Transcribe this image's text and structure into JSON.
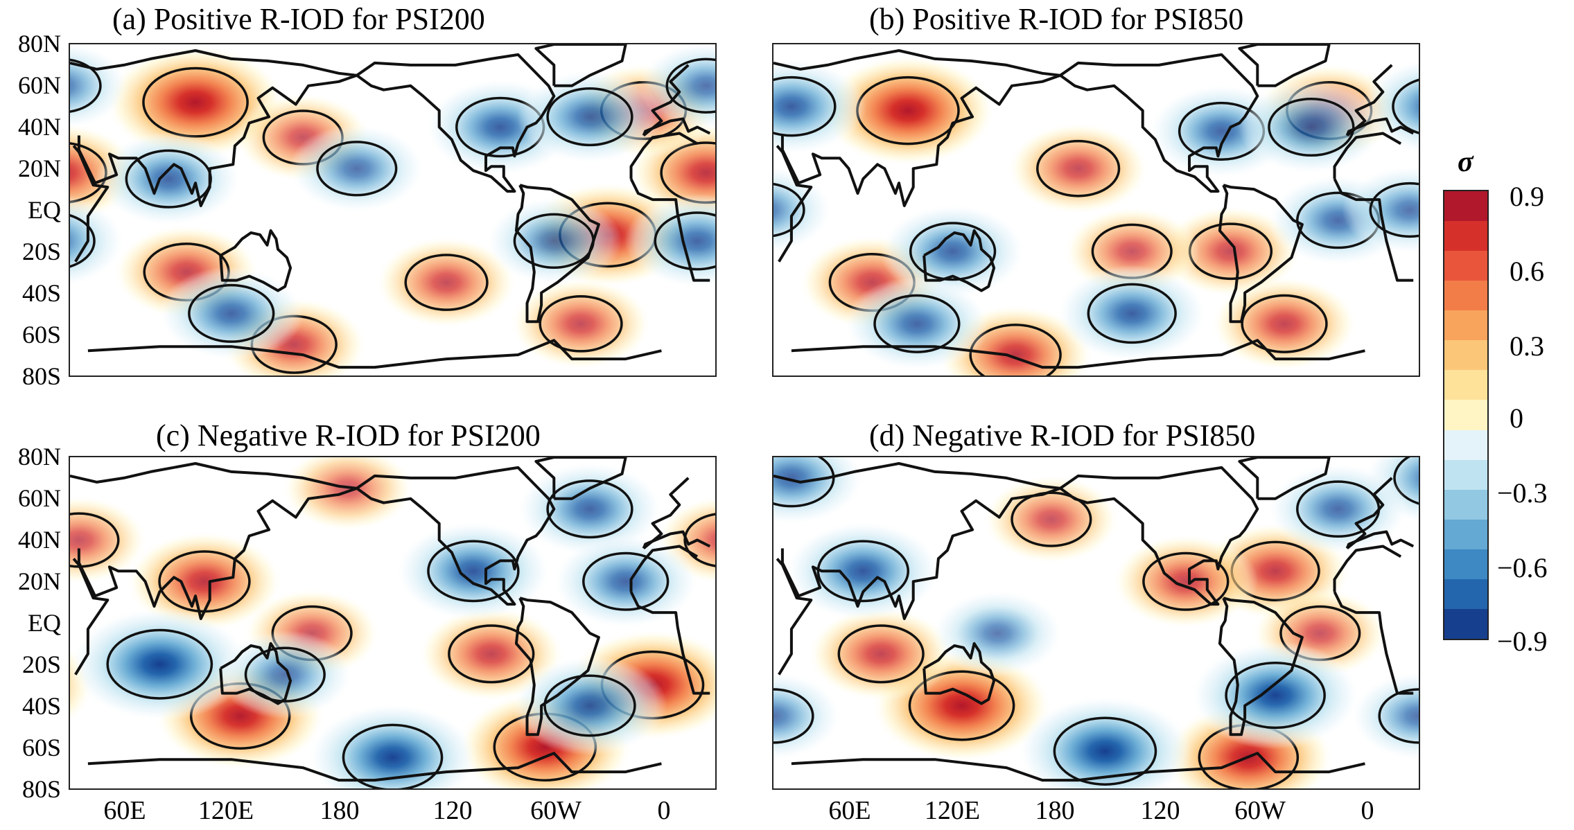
{
  "panels": [
    {
      "id": "a",
      "title": "(a) Positive R-IOD for PSI200"
    },
    {
      "id": "b",
      "title": "(b) Positive R-IOD for PSI850"
    },
    {
      "id": "c",
      "title": "(c) Negative R-IOD for PSI200"
    },
    {
      "id": "d",
      "title": "(d) Negative R-IOD for PSI850"
    }
  ],
  "lat_labels": [
    "80N",
    "60N",
    "40N",
    "20N",
    "EQ",
    "20S",
    "40S",
    "60S",
    "80S"
  ],
  "lon_labels": [
    "60E",
    "120E",
    "180",
    "120",
    "60W",
    "0"
  ],
  "colorbar": {
    "title": "σ",
    "tick_labels": [
      "0.9",
      "0.6",
      "0.3",
      "0",
      "−0.3",
      "−0.6",
      "−0.9"
    ],
    "colors": [
      "#b2182b",
      "#d6302a",
      "#e8553a",
      "#f27d48",
      "#f9a45d",
      "#fcc679",
      "#fee29a",
      "#fff4c4",
      "#e4f3fa",
      "#bfe3f0",
      "#92c8e2",
      "#64a9d3",
      "#3e88c3",
      "#2466ad",
      "#163f8e"
    ]
  },
  "map_data": {
    "a": {
      "anomalies": [
        {
          "lon": 100,
          "lat": 52,
          "v": 0.85
        },
        {
          "lon": 25,
          "lat": 18,
          "v": 0.6
        },
        {
          "lon": 330,
          "lat": -12,
          "v": 0.7
        },
        {
          "lon": 95,
          "lat": -30,
          "v": 0.5
        },
        {
          "lon": 160,
          "lat": 35,
          "v": 0.4
        },
        {
          "lon": 240,
          "lat": -35,
          "v": 0.45
        },
        {
          "lon": 155,
          "lat": -65,
          "v": 0.5
        },
        {
          "lon": 315,
          "lat": -55,
          "v": 0.45
        },
        {
          "lon": 350,
          "lat": 48,
          "v": 0.5
        },
        {
          "lon": 85,
          "lat": 15,
          "v": -0.5
        },
        {
          "lon": 270,
          "lat": 40,
          "v": -0.55
        },
        {
          "lon": 320,
          "lat": 45,
          "v": -0.5
        },
        {
          "lon": 120,
          "lat": -50,
          "v": -0.5
        },
        {
          "lon": 300,
          "lat": -15,
          "v": -0.4
        },
        {
          "lon": 20,
          "lat": -15,
          "v": -0.5
        },
        {
          "lon": 190,
          "lat": 20,
          "v": -0.4
        },
        {
          "lon": 25,
          "lat": 60,
          "v": -0.4
        }
      ]
    },
    "b": {
      "anomalies": [
        {
          "lon": 105,
          "lat": 48,
          "v": 0.8
        },
        {
          "lon": 165,
          "lat": -70,
          "v": 0.6
        },
        {
          "lon": 315,
          "lat": -55,
          "v": 0.5
        },
        {
          "lon": 200,
          "lat": 20,
          "v": 0.45
        },
        {
          "lon": 285,
          "lat": -20,
          "v": 0.45
        },
        {
          "lon": 85,
          "lat": -35,
          "v": 0.5
        },
        {
          "lon": 340,
          "lat": 48,
          "v": 0.5
        },
        {
          "lon": 230,
          "lat": -20,
          "v": 0.4
        },
        {
          "lon": 40,
          "lat": 50,
          "v": -0.55
        },
        {
          "lon": 130,
          "lat": -20,
          "v": -0.5
        },
        {
          "lon": 230,
          "lat": -50,
          "v": -0.55
        },
        {
          "lon": 280,
          "lat": 38,
          "v": -0.5
        },
        {
          "lon": 330,
          "lat": 40,
          "v": -0.5
        },
        {
          "lon": 110,
          "lat": -55,
          "v": -0.5
        },
        {
          "lon": 345,
          "lat": -5,
          "v": -0.45
        },
        {
          "lon": 25,
          "lat": 0,
          "v": -0.4
        }
      ]
    },
    "c": {
      "anomalies": [
        {
          "lon": 105,
          "lat": 20,
          "v": 0.6
        },
        {
          "lon": 125,
          "lat": -45,
          "v": 0.75
        },
        {
          "lon": 295,
          "lat": -60,
          "v": 0.8
        },
        {
          "lon": 355,
          "lat": -30,
          "v": 0.8
        },
        {
          "lon": 265,
          "lat": -15,
          "v": 0.5
        },
        {
          "lon": 35,
          "lat": 40,
          "v": 0.4
        },
        {
          "lon": 165,
          "lat": -5,
          "v": 0.4
        },
        {
          "lon": 185,
          "lat": 65,
          "v": 0.35
        },
        {
          "lon": 80,
          "lat": -20,
          "v": -0.85
        },
        {
          "lon": 210,
          "lat": -65,
          "v": -0.75
        },
        {
          "lon": 255,
          "lat": 25,
          "v": -0.6
        },
        {
          "lon": 320,
          "lat": -40,
          "v": -0.6
        },
        {
          "lon": 320,
          "lat": 55,
          "v": -0.5
        },
        {
          "lon": 340,
          "lat": 20,
          "v": -0.5
        },
        {
          "lon": 150,
          "lat": -25,
          "v": -0.4
        }
      ]
    },
    "d": {
      "anomalies": [
        {
          "lon": 135,
          "lat": -40,
          "v": 0.85
        },
        {
          "lon": 295,
          "lat": -65,
          "v": 0.75
        },
        {
          "lon": 310,
          "lat": 25,
          "v": 0.55
        },
        {
          "lon": 260,
          "lat": 20,
          "v": 0.5
        },
        {
          "lon": 90,
          "lat": -15,
          "v": 0.5
        },
        {
          "lon": 185,
          "lat": 50,
          "v": 0.4
        },
        {
          "lon": 335,
          "lat": -5,
          "v": 0.4
        },
        {
          "lon": 80,
          "lat": 25,
          "v": -0.6
        },
        {
          "lon": 215,
          "lat": -62,
          "v": -0.8
        },
        {
          "lon": 310,
          "lat": -35,
          "v": -0.75
        },
        {
          "lon": 40,
          "lat": 70,
          "v": -0.5
        },
        {
          "lon": 345,
          "lat": 55,
          "v": -0.45
        },
        {
          "lon": 155,
          "lat": -5,
          "v": -0.35
        },
        {
          "lon": 30,
          "lat": -45,
          "v": -0.4
        }
      ]
    }
  }
}
